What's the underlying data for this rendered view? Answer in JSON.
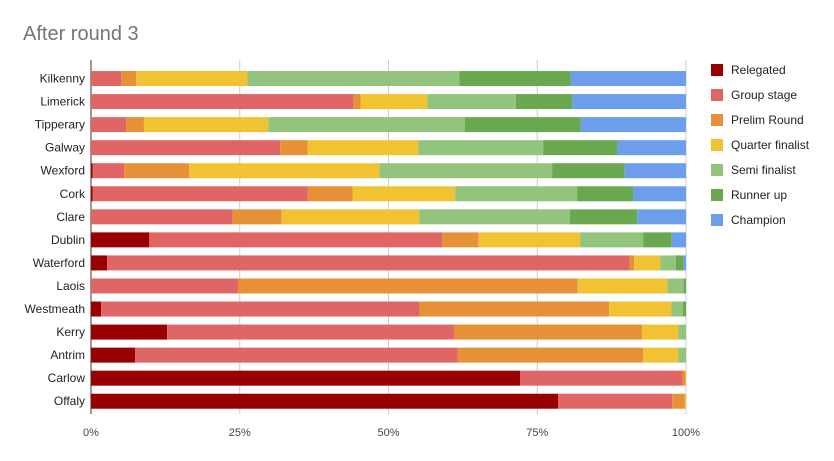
{
  "chart_data": {
    "type": "bar",
    "orientation": "horizontal",
    "stacked": true,
    "percent": true,
    "title": "After round 3",
    "xlabel": "",
    "ylabel": "",
    "xlim": [
      0,
      100
    ],
    "x_tick_labels": [
      "0%",
      "25%",
      "50%",
      "75%",
      "100%"
    ],
    "grid": true,
    "legend_position": "right",
    "categories": [
      "Kilkenny",
      "Limerick",
      "Tipperary",
      "Galway",
      "Wexford",
      "Cork",
      "Clare",
      "Dublin",
      "Waterford",
      "Laois",
      "Westmeath",
      "Kerry",
      "Antrim",
      "Carlow",
      "Offaly"
    ],
    "series": [
      {
        "name": "Relegated",
        "color": "#990000",
        "values": [
          0,
          0,
          0,
          0,
          0.3,
          0.3,
          0,
          9.8,
          2.7,
          0,
          1.7,
          12.8,
          7.4,
          72.1,
          78.5
        ]
      },
      {
        "name": "Group stage",
        "color": "#e06666",
        "values": [
          5.1,
          44.1,
          5.9,
          31.8,
          5.3,
          36.1,
          23.8,
          49.2,
          87.8,
          24.7,
          53.5,
          48.2,
          54.2,
          27.3,
          19.2
        ]
      },
      {
        "name": "Prelim Round",
        "color": "#e69138",
        "values": [
          2.5,
          1.2,
          3.0,
          4.6,
          10.9,
          7.6,
          8.2,
          6.1,
          0.8,
          57.1,
          31.9,
          31.6,
          31.2,
          0.5,
          2.1
        ]
      },
      {
        "name": "Quarter finalist",
        "color": "#f1c232",
        "values": [
          18.7,
          11.2,
          20.9,
          18.6,
          32.0,
          17.2,
          23.2,
          17.1,
          4.4,
          15.1,
          10.4,
          6.1,
          5.9,
          0.1,
          0.2
        ]
      },
      {
        "name": "Semi finalist",
        "color": "#93c47d",
        "values": [
          35.6,
          14.9,
          33.0,
          21.0,
          29.0,
          20.5,
          25.3,
          10.6,
          2.6,
          2.7,
          2.0,
          1.3,
          1.3,
          0,
          0
        ]
      },
      {
        "name": "Runner up",
        "color": "#6aa84f",
        "values": [
          18.7,
          9.5,
          19.5,
          12.4,
          12.2,
          9.4,
          11.3,
          4.8,
          1.3,
          0.4,
          0.5,
          0,
          0,
          0,
          0
        ]
      },
      {
        "name": "Champion",
        "color": "#6d9eeb",
        "values": [
          19.4,
          19.1,
          17.7,
          11.6,
          10.3,
          8.9,
          8.2,
          2.4,
          0.4,
          0,
          0,
          0,
          0,
          0,
          0
        ]
      }
    ]
  }
}
